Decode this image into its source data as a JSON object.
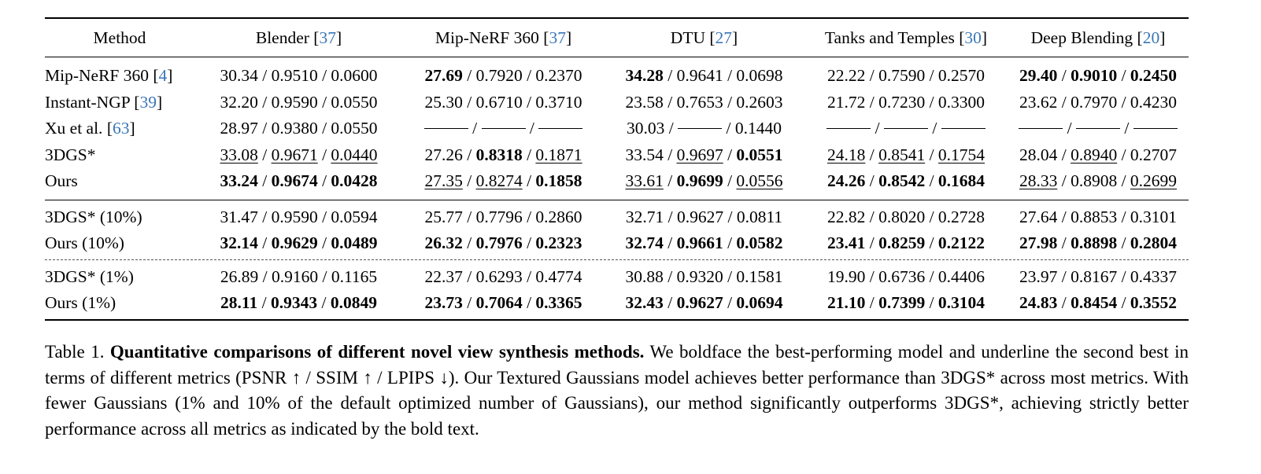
{
  "columns": [
    {
      "name": "Method",
      "cite": ""
    },
    {
      "name": "Blender ",
      "cite": "37"
    },
    {
      "name": "Mip-NeRF 360 ",
      "cite": "37"
    },
    {
      "name": "DTU ",
      "cite": "27"
    },
    {
      "name": "Tanks and Temples ",
      "cite": "30"
    },
    {
      "name": "Deep Blending ",
      "cite": "20"
    }
  ],
  "groups": [
    {
      "rows": [
        {
          "method": "Mip-NeRF 360 ",
          "cite": "4",
          "cells": [
            [
              [
                "30.34",
                ""
              ],
              [
                "0.9510",
                ""
              ],
              [
                "0.0600",
                ""
              ]
            ],
            [
              [
                "27.69",
                "b"
              ],
              [
                "0.7920",
                ""
              ],
              [
                "0.2370",
                ""
              ]
            ],
            [
              [
                "34.28",
                "b"
              ],
              [
                "0.9641",
                ""
              ],
              [
                "0.0698",
                ""
              ]
            ],
            [
              [
                "22.22",
                ""
              ],
              [
                "0.7590",
                ""
              ],
              [
                "0.2570",
                ""
              ]
            ],
            [
              [
                "29.40",
                "b"
              ],
              [
                "0.9010",
                "b"
              ],
              [
                "0.2450",
                "b"
              ]
            ]
          ]
        },
        {
          "method": "Instant-NGP ",
          "cite": "39",
          "cells": [
            [
              [
                "32.20",
                ""
              ],
              [
                "0.9590",
                ""
              ],
              [
                "0.0550",
                ""
              ]
            ],
            [
              [
                "25.30",
                ""
              ],
              [
                "0.6710",
                ""
              ],
              [
                "0.3710",
                ""
              ]
            ],
            [
              [
                "23.58",
                ""
              ],
              [
                "0.7653",
                ""
              ],
              [
                "0.2603",
                ""
              ]
            ],
            [
              [
                "21.72",
                ""
              ],
              [
                "0.7230",
                ""
              ],
              [
                "0.3300",
                ""
              ]
            ],
            [
              [
                "23.62",
                ""
              ],
              [
                "0.7970",
                ""
              ],
              [
                "0.4230",
                ""
              ]
            ]
          ]
        },
        {
          "method": "Xu et al. ",
          "cite": "63",
          "cells": [
            [
              [
                "28.97",
                ""
              ],
              [
                "0.9380",
                ""
              ],
              [
                "0.0550",
                ""
              ]
            ],
            [
              [
                "",
                ""
              ],
              [
                "",
                ""
              ],
              [
                "",
                ""
              ]
            ],
            [
              [
                "30.03",
                ""
              ],
              [
                "",
                ""
              ],
              [
                "0.1440",
                ""
              ]
            ],
            [
              [
                "",
                ""
              ],
              [
                "",
                ""
              ],
              [
                "",
                ""
              ]
            ],
            [
              [
                "",
                ""
              ],
              [
                "",
                ""
              ],
              [
                "",
                ""
              ]
            ]
          ]
        },
        {
          "method": "3DGS*",
          "cite": "",
          "cells": [
            [
              [
                "33.08",
                "u"
              ],
              [
                "0.9671",
                "u"
              ],
              [
                "0.0440",
                "u"
              ]
            ],
            [
              [
                "27.26",
                ""
              ],
              [
                "0.8318",
                "b"
              ],
              [
                "0.1871",
                "u"
              ]
            ],
            [
              [
                "33.54",
                ""
              ],
              [
                "0.9697",
                "u"
              ],
              [
                "0.0551",
                "b"
              ]
            ],
            [
              [
                "24.18",
                "u"
              ],
              [
                "0.8541",
                "u"
              ],
              [
                "0.1754",
                "u"
              ]
            ],
            [
              [
                "28.04",
                ""
              ],
              [
                "0.8940",
                "u"
              ],
              [
                "0.2707",
                ""
              ]
            ]
          ]
        },
        {
          "method": "Ours",
          "cite": "",
          "cells": [
            [
              [
                "33.24",
                "b"
              ],
              [
                "0.9674",
                "b"
              ],
              [
                "0.0428",
                "b"
              ]
            ],
            [
              [
                "27.35",
                "u"
              ],
              [
                "0.8274",
                "u"
              ],
              [
                "0.1858",
                "b"
              ]
            ],
            [
              [
                "33.61",
                "u"
              ],
              [
                "0.9699",
                "b"
              ],
              [
                "0.0556",
                "u"
              ]
            ],
            [
              [
                "24.26",
                "b"
              ],
              [
                "0.8542",
                "b"
              ],
              [
                "0.1684",
                "b"
              ]
            ],
            [
              [
                "28.33",
                "u"
              ],
              [
                "0.8908",
                ""
              ],
              [
                "0.2699",
                "u"
              ]
            ]
          ]
        }
      ]
    },
    {
      "rows": [
        {
          "method": "3DGS* (10%)",
          "cite": "",
          "cells": [
            [
              [
                "31.47",
                ""
              ],
              [
                "0.9590",
                ""
              ],
              [
                "0.0594",
                ""
              ]
            ],
            [
              [
                "25.77",
                ""
              ],
              [
                "0.7796",
                ""
              ],
              [
                "0.2860",
                ""
              ]
            ],
            [
              [
                "32.71",
                ""
              ],
              [
                "0.9627",
                ""
              ],
              [
                "0.0811",
                ""
              ]
            ],
            [
              [
                "22.82",
                ""
              ],
              [
                "0.8020",
                ""
              ],
              [
                "0.2728",
                ""
              ]
            ],
            [
              [
                "27.64",
                ""
              ],
              [
                "0.8853",
                ""
              ],
              [
                "0.3101",
                ""
              ]
            ]
          ]
        },
        {
          "method": "Ours (10%)",
          "cite": "",
          "cells": [
            [
              [
                "32.14",
                "b"
              ],
              [
                "0.9629",
                "b"
              ],
              [
                "0.0489",
                "b"
              ]
            ],
            [
              [
                "26.32",
                "b"
              ],
              [
                "0.7976",
                "b"
              ],
              [
                "0.2323",
                "b"
              ]
            ],
            [
              [
                "32.74",
                "b"
              ],
              [
                "0.9661",
                "b"
              ],
              [
                "0.0582",
                "b"
              ]
            ],
            [
              [
                "23.41",
                "b"
              ],
              [
                "0.8259",
                "b"
              ],
              [
                "0.2122",
                "b"
              ]
            ],
            [
              [
                "27.98",
                "b"
              ],
              [
                "0.8898",
                "b"
              ],
              [
                "0.2804",
                "b"
              ]
            ]
          ]
        }
      ]
    },
    {
      "rows": [
        {
          "method": "3DGS* (1%)",
          "cite": "",
          "cells": [
            [
              [
                "26.89",
                ""
              ],
              [
                "0.9160",
                ""
              ],
              [
                "0.1165",
                ""
              ]
            ],
            [
              [
                "22.37",
                ""
              ],
              [
                "0.6293",
                ""
              ],
              [
                "0.4774",
                ""
              ]
            ],
            [
              [
                "30.88",
                ""
              ],
              [
                "0.9320",
                ""
              ],
              [
                "0.1581",
                ""
              ]
            ],
            [
              [
                "19.90",
                ""
              ],
              [
                "0.6736",
                ""
              ],
              [
                "0.4406",
                ""
              ]
            ],
            [
              [
                "23.97",
                ""
              ],
              [
                "0.8167",
                ""
              ],
              [
                "0.4337",
                ""
              ]
            ]
          ]
        },
        {
          "method": "Ours (1%)",
          "cite": "",
          "cells": [
            [
              [
                "28.11",
                "b"
              ],
              [
                "0.9343",
                "b"
              ],
              [
                "0.0849",
                "b"
              ]
            ],
            [
              [
                "23.73",
                "b"
              ],
              [
                "0.7064",
                "b"
              ],
              [
                "0.3365",
                "b"
              ]
            ],
            [
              [
                "32.43",
                "b"
              ],
              [
                "0.9627",
                "b"
              ],
              [
                "0.0694",
                "b"
              ]
            ],
            [
              [
                "21.10",
                "b"
              ],
              [
                "0.7399",
                "b"
              ],
              [
                "0.3104",
                "b"
              ]
            ],
            [
              [
                "24.83",
                "b"
              ],
              [
                "0.8454",
                "b"
              ],
              [
                "0.3552",
                "b"
              ]
            ]
          ]
        }
      ]
    }
  ],
  "caption": {
    "label": "Table 1. ",
    "title": "Quantitative comparisons of different novel view synthesis methods.",
    "body": " We boldface the best-performing model and underline the second best in terms of different metrics (PSNR ↑ / SSIM ↑ / LPIPS ↓). Our Textured Gaussians model achieves better performance than 3DGS* across most metrics. With fewer Gaussians (1% and 10% of the default optimized number of Gaussians), our method significantly outperforms 3DGS*, achieving strictly better performance across all metrics as indicated by the bold text."
  },
  "colors": {
    "cite": "#3a76b6",
    "text": "#000000"
  }
}
